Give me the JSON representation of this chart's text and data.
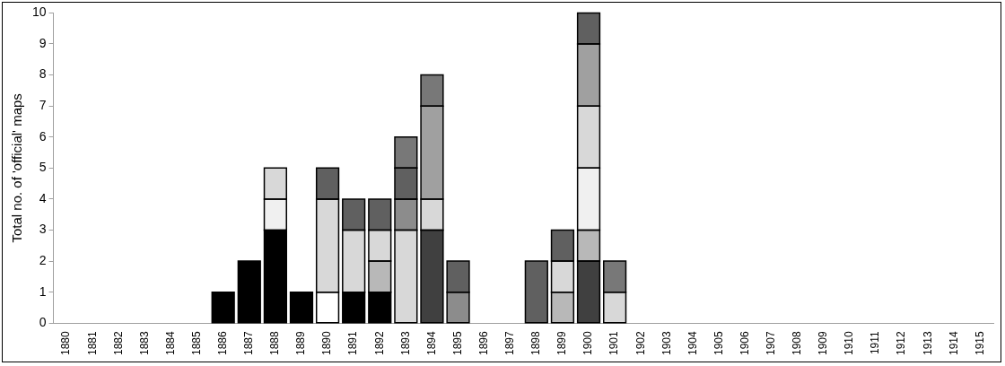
{
  "chart_data": {
    "type": "bar",
    "stacked": true,
    "ylabel": "Total no. of 'official' maps",
    "categories": [
      "1880",
      "1881",
      "1882",
      "1883",
      "1884",
      "1885",
      "1886",
      "1887",
      "1888",
      "1889",
      "1890",
      "1891",
      "1892",
      "1893",
      "1894",
      "1895",
      "1896",
      "1897",
      "1898",
      "1899",
      "1900",
      "1901",
      "1902",
      "1903",
      "1904",
      "1905",
      "1906",
      "1907",
      "1908",
      "1909",
      "1910",
      "1911",
      "1912",
      "1913",
      "1914",
      "1915"
    ],
    "ylim": [
      0,
      10
    ],
    "yticks": [
      0,
      1,
      2,
      3,
      4,
      5,
      6,
      7,
      8,
      9,
      10
    ],
    "grid": false,
    "legend": false,
    "series": [
      {
        "color": "#000000",
        "values": [
          null,
          null,
          null,
          null,
          null,
          null,
          1,
          2,
          3,
          1,
          null,
          1,
          1,
          null,
          null,
          null,
          null,
          null,
          null,
          null,
          null,
          null,
          null,
          null,
          null,
          null,
          null,
          null,
          null,
          null,
          null,
          null,
          null,
          null,
          null,
          null
        ]
      },
      {
        "color": "#ffffff",
        "values": [
          null,
          null,
          null,
          null,
          null,
          null,
          null,
          null,
          null,
          null,
          1,
          null,
          null,
          null,
          null,
          null,
          null,
          null,
          null,
          null,
          null,
          null,
          null,
          null,
          null,
          null,
          null,
          null,
          null,
          null,
          null,
          null,
          null,
          null,
          null,
          null
        ]
      },
      {
        "color": "#404040",
        "values": [
          null,
          null,
          null,
          null,
          null,
          null,
          null,
          null,
          null,
          null,
          null,
          null,
          null,
          null,
          3,
          null,
          null,
          null,
          null,
          null,
          2,
          null,
          null,
          null,
          null,
          null,
          null,
          null,
          null,
          null,
          null,
          null,
          null,
          null,
          null,
          null
        ]
      },
      {
        "color": "#b8b8b8",
        "values": [
          null,
          null,
          null,
          null,
          null,
          null,
          null,
          null,
          null,
          null,
          null,
          null,
          1,
          null,
          null,
          null,
          null,
          null,
          null,
          1,
          1,
          null,
          null,
          null,
          null,
          null,
          null,
          null,
          null,
          null,
          null,
          null,
          null,
          null,
          null,
          null
        ]
      },
      {
        "color": "#f0f0f0",
        "values": [
          null,
          null,
          null,
          null,
          null,
          null,
          null,
          null,
          1,
          null,
          null,
          null,
          null,
          null,
          null,
          null,
          null,
          null,
          null,
          null,
          2,
          null,
          null,
          null,
          null,
          null,
          null,
          null,
          null,
          null,
          null,
          null,
          null,
          null,
          null,
          null
        ]
      },
      {
        "color": "#d8d8d8",
        "values": [
          null,
          null,
          null,
          null,
          null,
          null,
          null,
          null,
          1,
          null,
          3,
          2,
          1,
          3,
          1,
          null,
          null,
          null,
          null,
          1,
          2,
          1,
          null,
          null,
          null,
          null,
          null,
          null,
          null,
          null,
          null,
          null,
          null,
          null,
          null,
          null
        ]
      },
      {
        "color": "#8c8c8c",
        "values": [
          null,
          null,
          null,
          null,
          null,
          null,
          null,
          null,
          null,
          null,
          null,
          null,
          null,
          1,
          null,
          1,
          null,
          null,
          null,
          null,
          null,
          null,
          null,
          null,
          null,
          null,
          null,
          null,
          null,
          null,
          null,
          null,
          null,
          null,
          null,
          null
        ]
      },
      {
        "color": "#a0a0a0",
        "values": [
          null,
          null,
          null,
          null,
          null,
          null,
          null,
          null,
          null,
          null,
          null,
          null,
          null,
          null,
          3,
          null,
          null,
          null,
          null,
          null,
          2,
          null,
          null,
          null,
          null,
          null,
          null,
          null,
          null,
          null,
          null,
          null,
          null,
          null,
          null,
          null
        ]
      },
      {
        "color": "#606060",
        "values": [
          null,
          null,
          null,
          null,
          null,
          null,
          null,
          null,
          null,
          null,
          1,
          1,
          1,
          1,
          null,
          1,
          null,
          null,
          2,
          1,
          1,
          null,
          null,
          null,
          null,
          null,
          null,
          null,
          null,
          null,
          null,
          null,
          null,
          null,
          null,
          null
        ]
      },
      {
        "color": "#787878",
        "values": [
          null,
          null,
          null,
          null,
          null,
          null,
          null,
          null,
          null,
          null,
          null,
          null,
          null,
          1,
          1,
          null,
          null,
          null,
          null,
          null,
          null,
          1,
          null,
          null,
          null,
          null,
          null,
          null,
          null,
          null,
          null,
          null,
          null,
          null,
          null,
          null
        ]
      }
    ]
  }
}
